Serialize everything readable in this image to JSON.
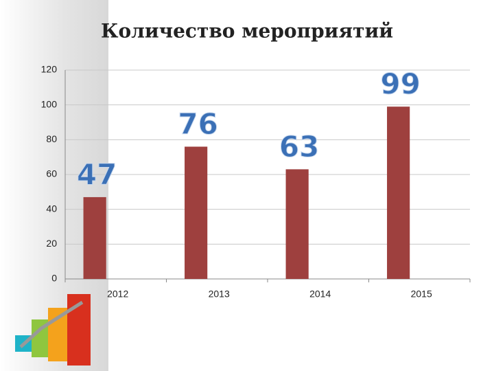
{
  "chart_data": {
    "type": "bar",
    "title": "Количество мероприятий",
    "categories": [
      "2012",
      "2013",
      "2014",
      "2015"
    ],
    "values": [
      47,
      76,
      63,
      99
    ],
    "color": "#9e403e",
    "label_color": "#3b70b6",
    "ylim": [
      0,
      120
    ],
    "yticks": [
      0,
      20,
      40,
      60,
      80,
      100,
      120
    ],
    "grid": true
  }
}
